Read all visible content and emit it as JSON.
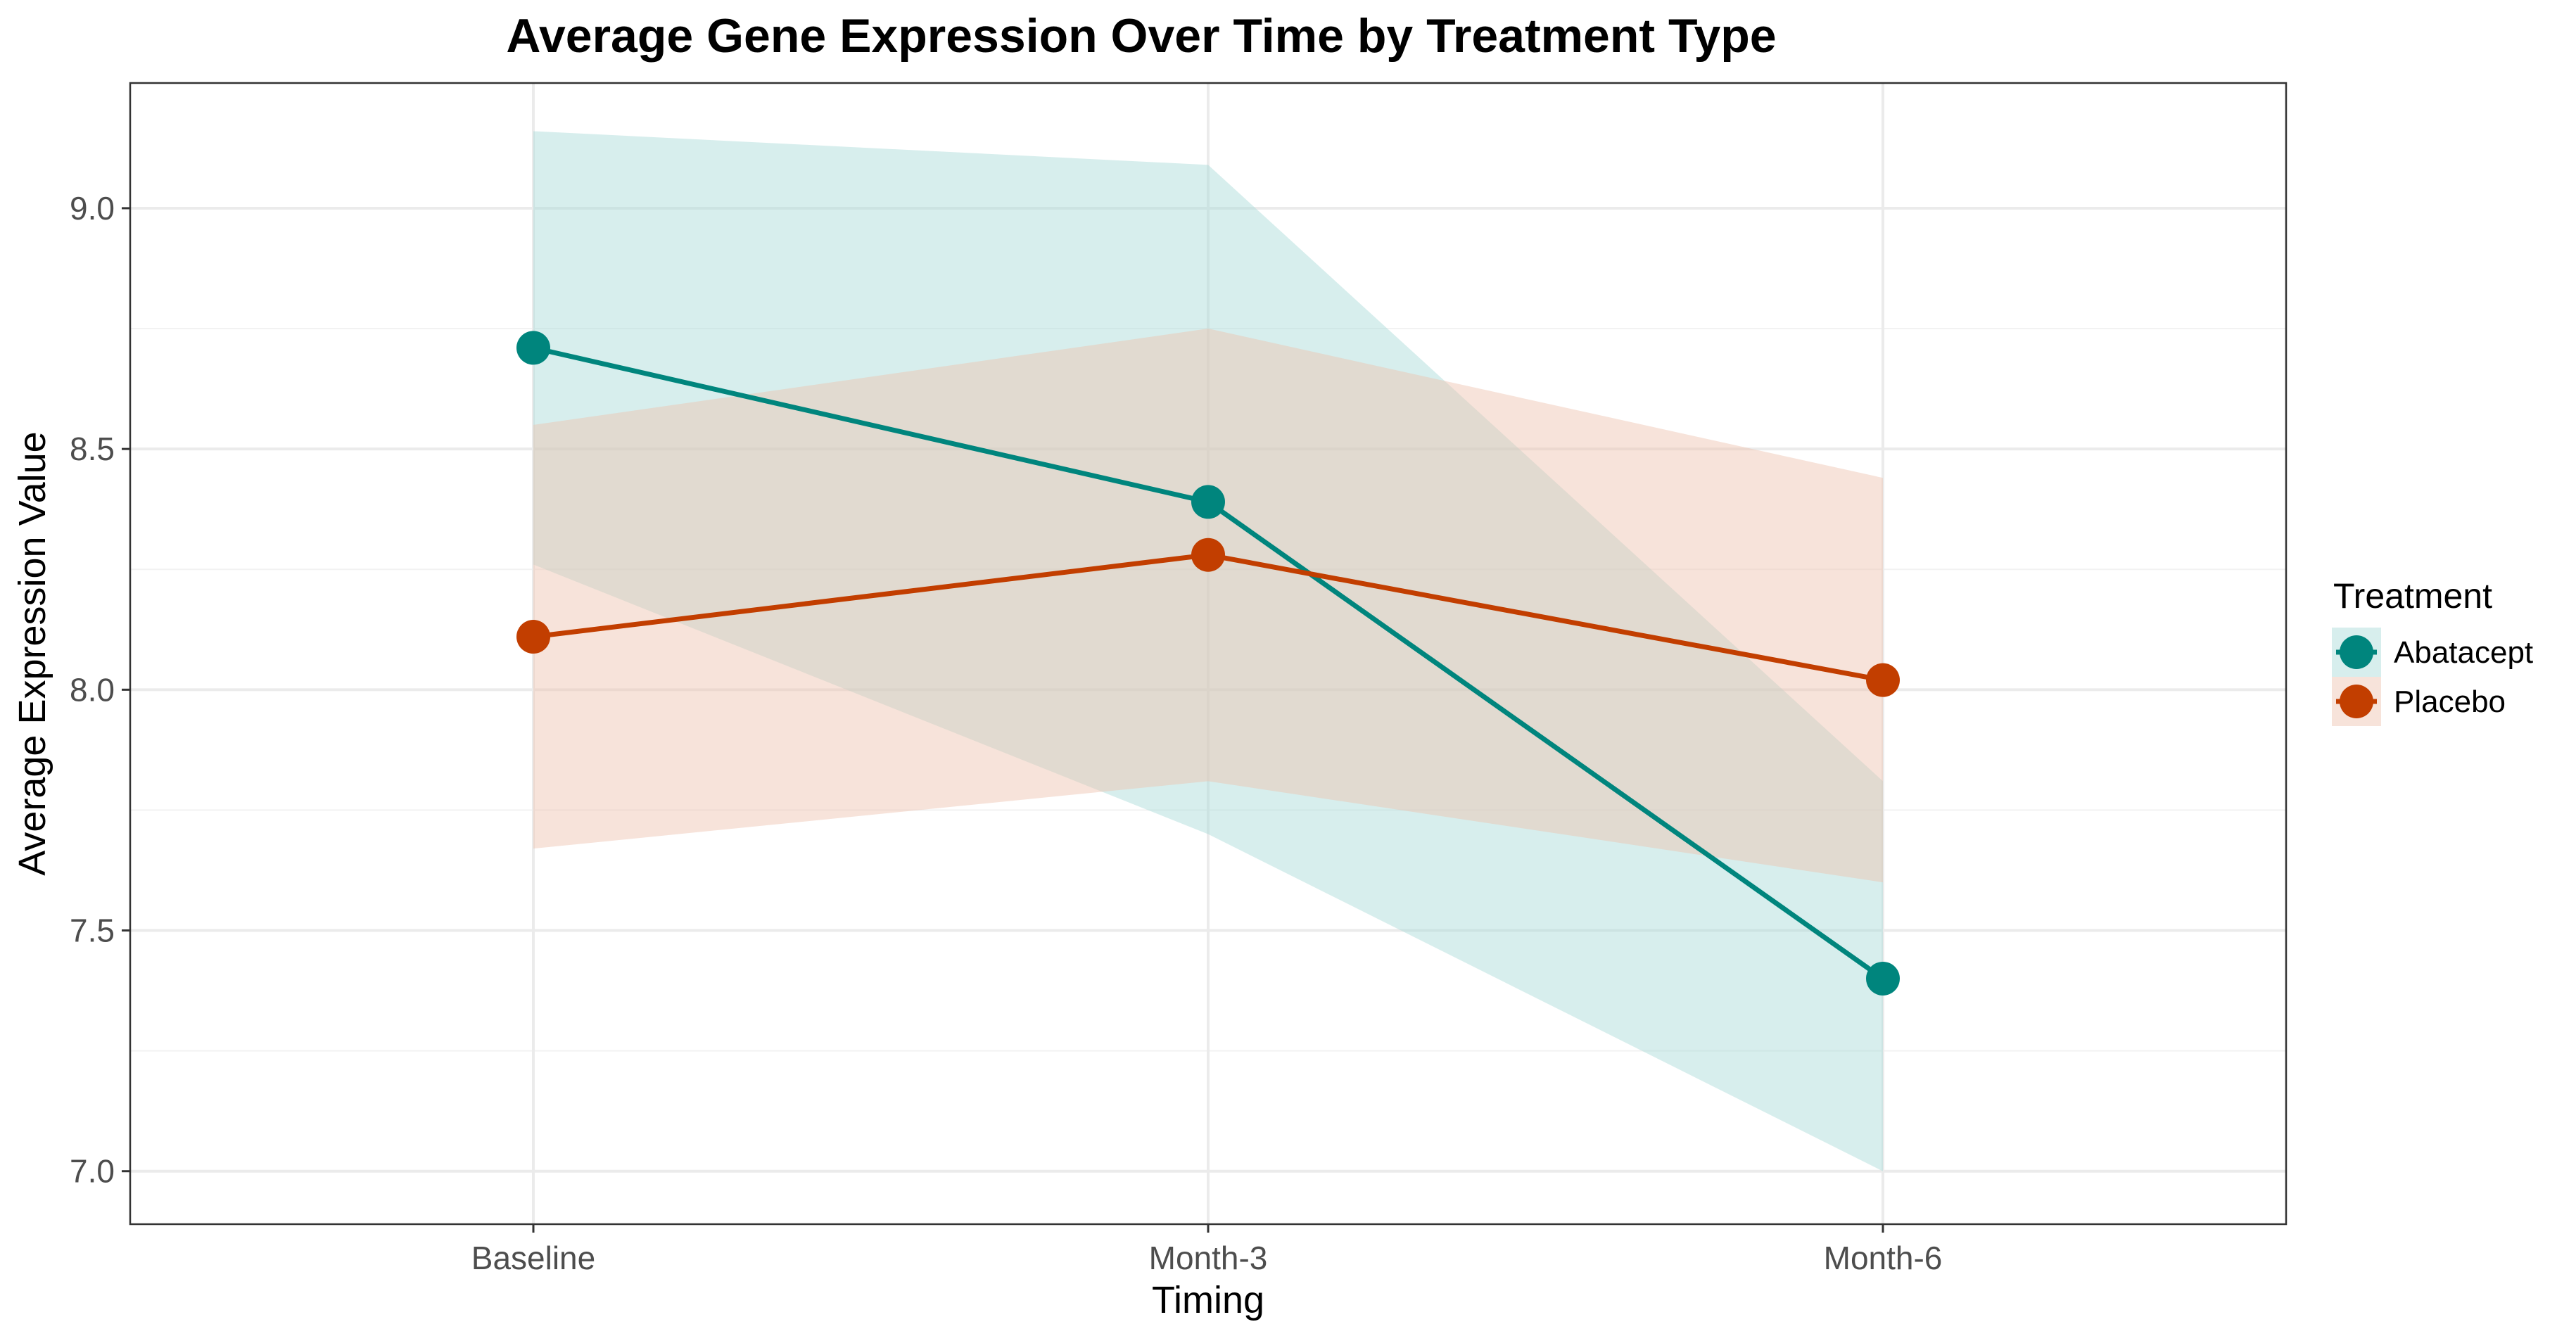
{
  "chart_data": {
    "type": "line",
    "title": "Average Gene Expression Over Time by Treatment Type",
    "xlabel": "Timing",
    "ylabel": "Average Expression Value",
    "categories": [
      "Baseline",
      "Month-3",
      "Month-6"
    ],
    "ylim": [
      6.89,
      9.26
    ],
    "yticks": [
      "7.0",
      "7.5",
      "8.0",
      "8.5",
      "9.0"
    ],
    "grid": true,
    "legend": {
      "title": "Treatment",
      "position": "right"
    },
    "series": [
      {
        "name": "Abatacept",
        "color": "#00857D",
        "band_color": "#A6D9D6",
        "values": [
          8.71,
          8.39,
          7.4
        ],
        "lower": [
          8.26,
          7.7,
          7.0
        ],
        "upper": [
          9.16,
          9.09,
          7.81
        ]
      },
      {
        "name": "Placebo",
        "color": "#C23E00",
        "band_color": "#EDC2AD",
        "values": [
          8.11,
          8.28,
          8.02
        ],
        "lower": [
          7.67,
          7.81,
          7.6
        ],
        "upper": [
          8.55,
          8.75,
          8.44
        ]
      }
    ]
  }
}
